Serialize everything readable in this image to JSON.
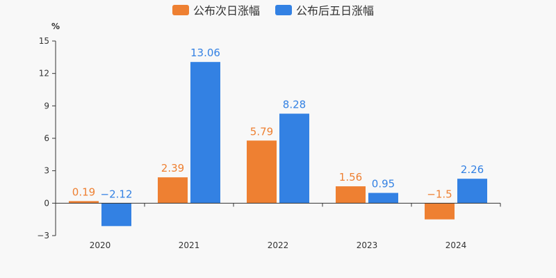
{
  "chart_data": {
    "type": "bar",
    "unit": "%",
    "categories": [
      "2020",
      "2021",
      "2022",
      "2023",
      "2024"
    ],
    "series": [
      {
        "name": "公布次日涨幅",
        "color": "#ee8032",
        "values": [
          0.19,
          2.39,
          5.79,
          1.56,
          -1.5
        ],
        "labels": [
          "0.19",
          "2.39",
          "5.79",
          "1.56",
          "−1.5"
        ]
      },
      {
        "name": "公布后五日涨幅",
        "color": "#3381e3",
        "values": [
          -2.12,
          13.06,
          8.28,
          0.95,
          2.26
        ],
        "labels": [
          "−2.12",
          "13.06",
          "8.28",
          "0.95",
          "2.26"
        ]
      }
    ],
    "ylim": [
      -3,
      15
    ],
    "yticks": [
      -3,
      0,
      3,
      6,
      9,
      12,
      15
    ],
    "ytick_labels": [
      "−3",
      "0",
      "3",
      "6",
      "9",
      "12",
      "15"
    ],
    "legend_position": "top-center",
    "grid": false
  }
}
